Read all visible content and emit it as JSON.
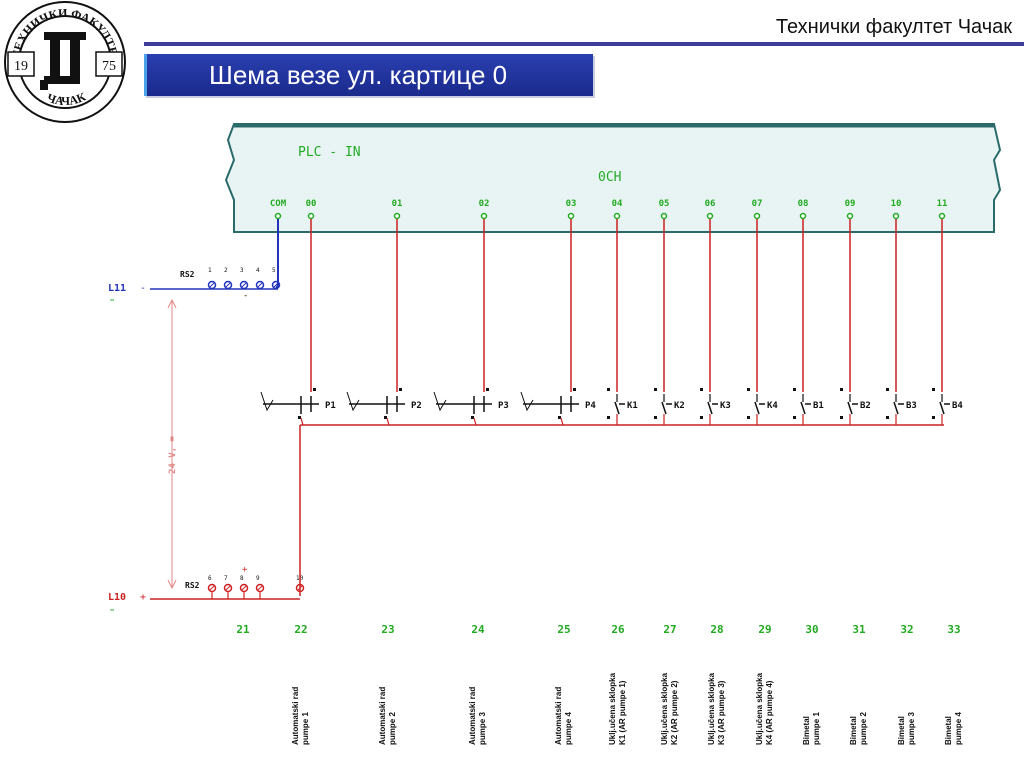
{
  "header": {
    "institution": "Технички факултет Чачак",
    "slide_title": "Шема везе ул. картице 0"
  },
  "logo": {
    "text_top": "ТЕХНИЧКИ ФАКУЛТЕТ",
    "text_bottom": "ЧАЧАК",
    "year_left": "19",
    "year_right": "75"
  },
  "plc": {
    "label": "PLC - IN",
    "channel": "0CH",
    "com_label": "COM",
    "terminals": [
      "00",
      "01",
      "02",
      "03",
      "04",
      "05",
      "06",
      "07",
      "08",
      "09",
      "10",
      "11"
    ]
  },
  "power": {
    "l11_label": "L11",
    "l11_sign": "-",
    "l10_label": "L10",
    "l10_sign": "+",
    "bus_label": "RS2",
    "voltage_label": "24 V, =",
    "plus_mark": "+",
    "minus_mark": "-"
  },
  "devices": [
    "P1",
    "P2",
    "P3",
    "P4",
    "K1",
    "K2",
    "K3",
    "K4",
    "B1",
    "B2",
    "B3",
    "B4"
  ],
  "wire_numbers": [
    "21",
    "22",
    "23",
    "24",
    "25",
    "26",
    "27",
    "28",
    "29",
    "30",
    "31",
    "32",
    "33"
  ],
  "captions": [
    {
      "line1": "Automatski rad",
      "line2": "pumpe 1"
    },
    {
      "line1": "Automatski rad",
      "line2": "pumpe 2"
    },
    {
      "line1": "Automatski rad",
      "line2": "pumpe 3"
    },
    {
      "line1": "Automatski rad",
      "line2": "pumpe 4"
    },
    {
      "line1": "Uklj.učena sklopka",
      "line2": "K1 (AR pumpe 1)"
    },
    {
      "line1": "Uklj.učena sklopka",
      "line2": "K2 (AR pumpe 2)"
    },
    {
      "line1": "Uklj.učena sklopka",
      "line2": "K3 (AR pumpe 3)"
    },
    {
      "line1": "Uklj.učena sklopka",
      "line2": "K4 (AR pumpe 4)"
    },
    {
      "line1": "Bimetal",
      "line2": "pumpe 1"
    },
    {
      "line1": "Bimetal",
      "line2": "pumpe 2"
    },
    {
      "line1": "Bimetal",
      "line2": "pumpe 3"
    },
    {
      "line1": "Bimetal",
      "line2": "pumpe 4"
    }
  ],
  "colors": {
    "wire_red": "#cc2222",
    "wire_blue": "#2233bb",
    "label_green": "#22aa22",
    "plc_fill": "#e8f4f4",
    "banner_blue": "#1f2f9c"
  }
}
